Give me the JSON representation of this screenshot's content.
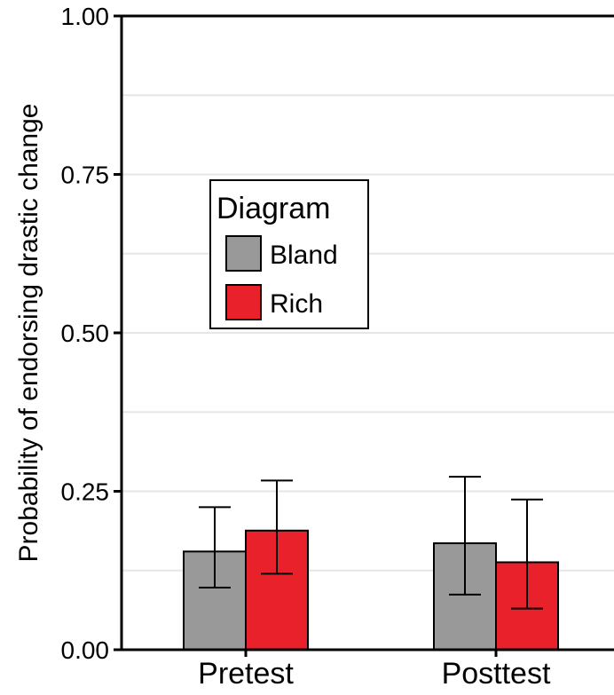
{
  "chart_data": {
    "type": "bar",
    "title": "",
    "xlabel": "",
    "ylabel": "Probability of endorsing drastic change",
    "ylim": [
      0,
      1
    ],
    "yticks": [
      "0.00",
      "0.25",
      "0.50",
      "0.75",
      "1.00"
    ],
    "ytick_values": [
      0,
      0.25,
      0.5,
      0.75,
      1.0
    ],
    "grid": true,
    "categories": [
      "Pretest",
      "Posttest"
    ],
    "series": [
      {
        "name": "Bland",
        "color": "#999999",
        "values": [
          0.155,
          0.168
        ],
        "err_low": [
          0.098,
          0.087
        ],
        "err_high": [
          0.225,
          0.273
        ]
      },
      {
        "name": "Rich",
        "color": "#e8212a",
        "values": [
          0.188,
          0.138
        ],
        "err_low": [
          0.12,
          0.065
        ],
        "err_high": [
          0.267,
          0.237
        ]
      }
    ],
    "legend": {
      "title": "Diagram",
      "position": "upper-left-inside"
    }
  }
}
